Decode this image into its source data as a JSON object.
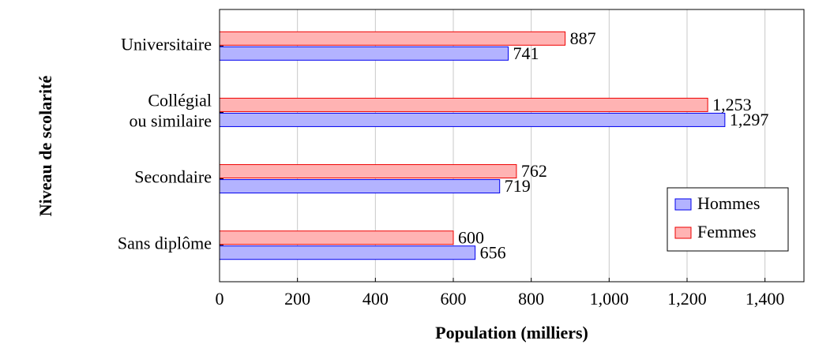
{
  "chart_data": {
    "type": "hbar",
    "xlabel": "Population (milliers)",
    "ylabel": "Niveau de scolarité",
    "categories": [
      [
        "Sans diplôme"
      ],
      [
        "Secondaire"
      ],
      [
        "Collégial",
        "ou similaire"
      ],
      [
        "Universitaire"
      ]
    ],
    "series": [
      {
        "name": "Hommes",
        "color": "#0000ee",
        "fill": "#b3b3ff",
        "values": [
          656,
          719,
          1297,
          741
        ],
        "value_labels": [
          "656",
          "719",
          "1,297",
          "741"
        ]
      },
      {
        "name": "Femmes",
        "color": "#ee0000",
        "fill": "#ffb3b3",
        "values": [
          600,
          762,
          1253,
          887
        ],
        "value_labels": [
          "600",
          "762",
          "1,253",
          "887"
        ]
      }
    ],
    "xlim": [
      0,
      1500
    ],
    "xticks": [
      0,
      200,
      400,
      600,
      800,
      {
        "value": 1000,
        "label": "1,000"
      },
      {
        "value": 1200,
        "label": "1,200"
      },
      {
        "value": 1400,
        "label": "1,400"
      }
    ],
    "grid": true,
    "legend": "lower right"
  }
}
